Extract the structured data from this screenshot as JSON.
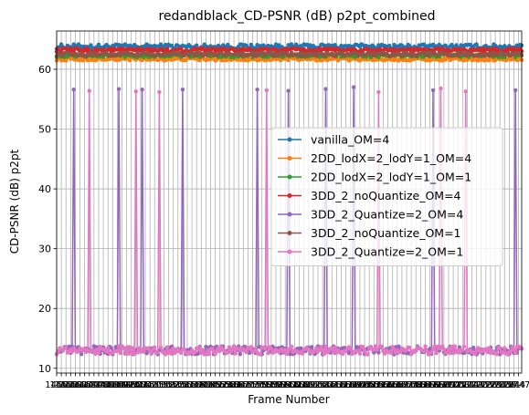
{
  "chart_data": {
    "type": "line",
    "title": "redandblack_CD-PSNR (dB) p2pt_combined",
    "xlabel": "Frame Number",
    "ylabel": "CD-PSNR (dB) p2pt",
    "xlim": [
      1450,
      1749
    ],
    "ylim": [
      9.2,
      66.4
    ],
    "yticks": [
      10,
      20,
      30,
      40,
      50,
      60
    ],
    "x_start": 1450,
    "x_end": 1749,
    "x_tick_step": 3,
    "x_tick_labels_overlap": true,
    "grid": true,
    "legend_position": "center-right",
    "series": [
      {
        "name": "vanilla_OM=4",
        "color": "#1f77b4",
        "base": 63.8,
        "amp": 0.4,
        "kind": "flat"
      },
      {
        "name": "2DD_lodX=2_lodY=1_OM=4",
        "color": "#ff7f0e",
        "base": 61.7,
        "amp": 0.25,
        "kind": "flat"
      },
      {
        "name": "2DD_lodX=2_lodY=1_OM=1",
        "color": "#2ca02c",
        "base": 62.3,
        "amp": 0.3,
        "kind": "flat"
      },
      {
        "name": "3DD_2_noQuantize_OM=4",
        "color": "#d62728",
        "base": 63.2,
        "amp": 0.3,
        "kind": "flat"
      },
      {
        "name": "3DD_2_Quantize=2_OM=4",
        "color": "#9467bd",
        "base": 13.0,
        "amp": 0.7,
        "kind": "spiky",
        "spikes": [
          [
            1461,
            56.6
          ],
          [
            1490,
            56.7
          ],
          [
            1505,
            56.6
          ],
          [
            1531,
            56.6
          ],
          [
            1579,
            56.6
          ],
          [
            1599,
            56.4
          ],
          [
            1623,
            56.7
          ],
          [
            1641,
            57.0
          ],
          [
            1692,
            56.5
          ],
          [
            1745,
            56.5
          ]
        ]
      },
      {
        "name": "3DD_2_noQuantize_OM=1",
        "color": "#8c564b",
        "base": 62.5,
        "amp": 0.3,
        "kind": "flat"
      },
      {
        "name": "3DD_2_Quantize=2_OM=1",
        "color": "#e377c2",
        "base": 13.0,
        "amp": 0.7,
        "kind": "spiky",
        "spikes": [
          [
            1471,
            56.4
          ],
          [
            1501,
            56.3
          ],
          [
            1516,
            56.2
          ],
          [
            1585,
            56.5
          ],
          [
            1657,
            56.2
          ],
          [
            1697,
            56.8
          ],
          [
            1713,
            56.3
          ]
        ]
      }
    ]
  }
}
